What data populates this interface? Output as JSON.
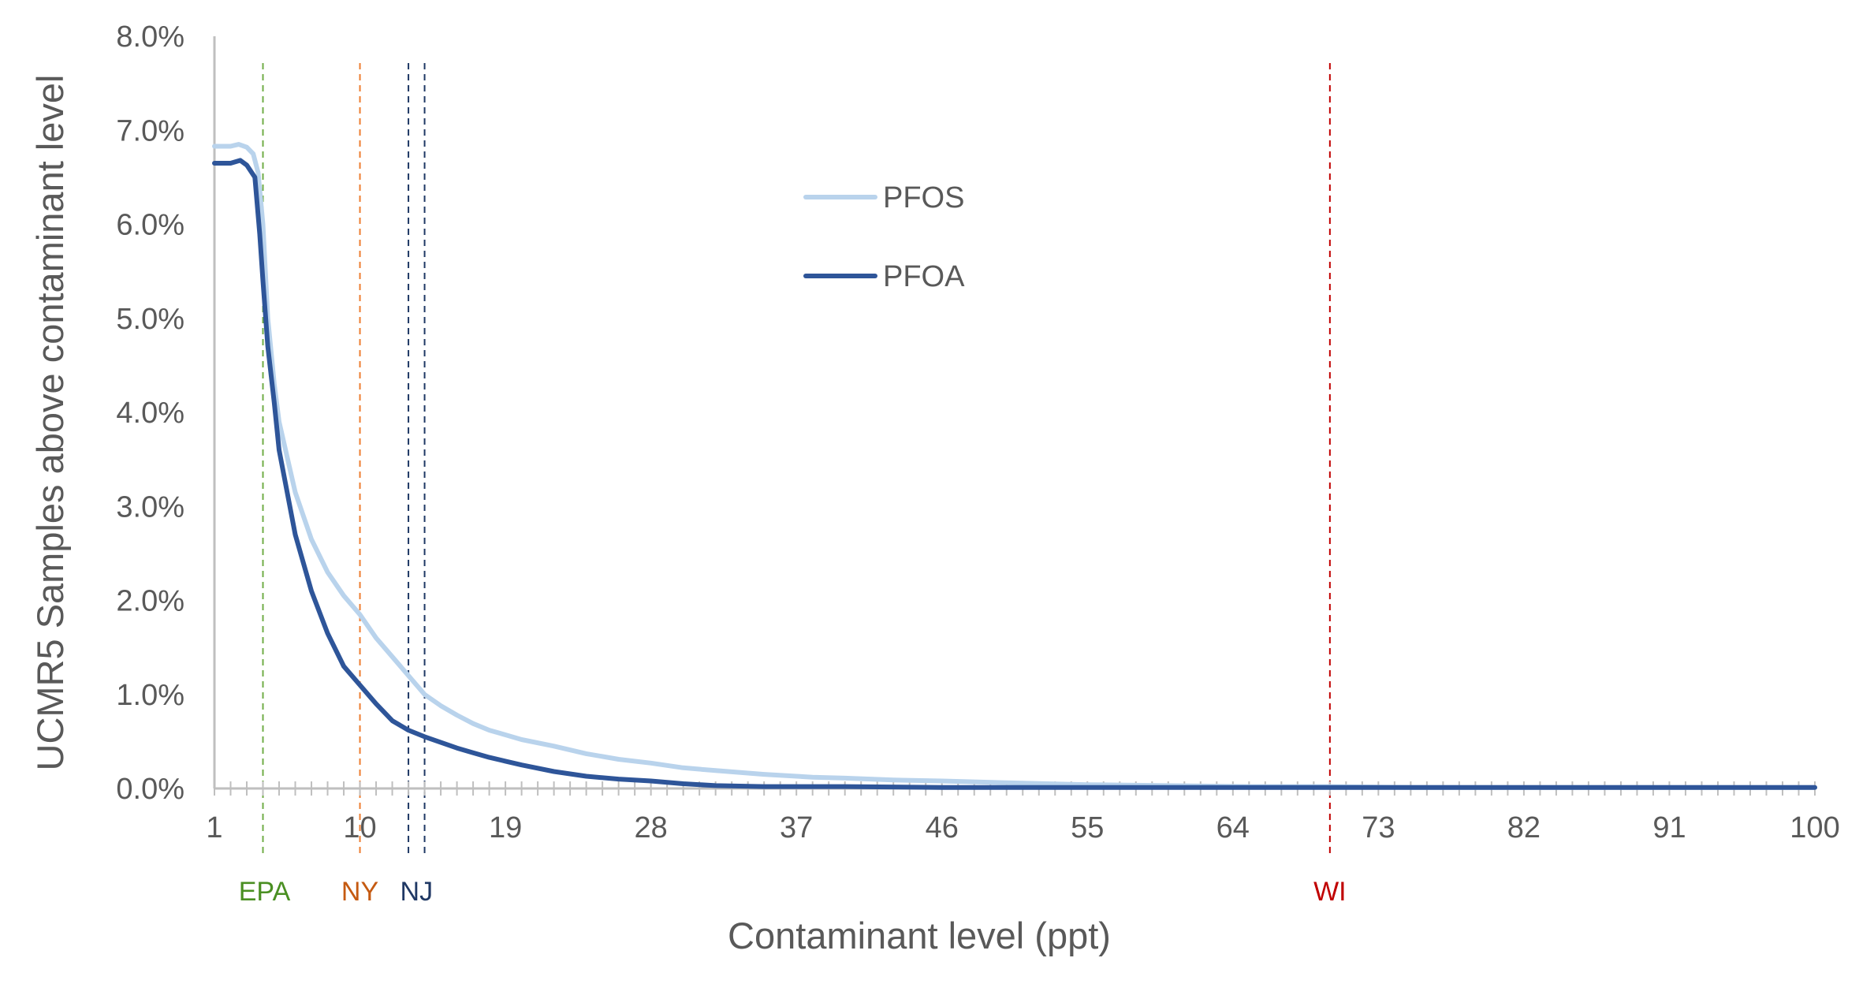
{
  "chart_data": {
    "type": "line",
    "title": "",
    "xlabel": "Contaminant level (ppt)",
    "ylabel": "UCMR5 Samples above contaminant level",
    "xlim": [
      1,
      100
    ],
    "ylim": [
      0,
      0.08
    ],
    "x_tick_labels": [
      "1",
      "10",
      "19",
      "28",
      "37",
      "46",
      "55",
      "64",
      "73",
      "82",
      "91",
      "100"
    ],
    "y_tick_labels": [
      "0.0%",
      "1.0%",
      "2.0%",
      "3.0%",
      "4.0%",
      "5.0%",
      "6.0%",
      "7.0%",
      "8.0%"
    ],
    "gridlines": false,
    "legend_position": "upper-center",
    "series": [
      {
        "name": "PFOS",
        "color": "#b9d3ec",
        "points": [
          [
            1,
            0.0683
          ],
          [
            2,
            0.0683
          ],
          [
            2.5,
            0.0685
          ],
          [
            3,
            0.0682
          ],
          [
            3.4,
            0.0675
          ],
          [
            3.7,
            0.0655
          ],
          [
            4,
            0.06
          ],
          [
            4.3,
            0.05
          ],
          [
            4.7,
            0.043
          ],
          [
            5,
            0.039
          ],
          [
            6,
            0.0315
          ],
          [
            7,
            0.0265
          ],
          [
            8,
            0.023
          ],
          [
            9,
            0.0205
          ],
          [
            10,
            0.0185
          ],
          [
            11,
            0.016
          ],
          [
            12,
            0.014
          ],
          [
            13,
            0.012
          ],
          [
            14,
            0.01
          ],
          [
            15,
            0.0088
          ],
          [
            16,
            0.0078
          ],
          [
            17,
            0.0069
          ],
          [
            18,
            0.0062
          ],
          [
            19,
            0.0057
          ],
          [
            20,
            0.0052
          ],
          [
            22,
            0.0045
          ],
          [
            24,
            0.0037
          ],
          [
            26,
            0.0031
          ],
          [
            28,
            0.0027
          ],
          [
            30,
            0.0022
          ],
          [
            32,
            0.0019
          ],
          [
            35,
            0.0015
          ],
          [
            38,
            0.0012
          ],
          [
            40,
            0.0011
          ],
          [
            43,
            0.0009
          ],
          [
            46,
            0.0008
          ],
          [
            50,
            0.0006
          ],
          [
            55,
            0.0004
          ],
          [
            60,
            0.0003
          ],
          [
            65,
            0.0002
          ],
          [
            70,
            0.0002
          ],
          [
            75,
            0.0001
          ],
          [
            80,
            0.0001
          ],
          [
            90,
            0.0001
          ],
          [
            100,
            0.0001
          ]
        ]
      },
      {
        "name": "PFOA",
        "color": "#2e5599",
        "points": [
          [
            1,
            0.0665
          ],
          [
            2,
            0.0665
          ],
          [
            2.6,
            0.0668
          ],
          [
            3,
            0.0663
          ],
          [
            3.5,
            0.065
          ],
          [
            3.8,
            0.059
          ],
          [
            4,
            0.054
          ],
          [
            4.3,
            0.047
          ],
          [
            4.7,
            0.041
          ],
          [
            5,
            0.036
          ],
          [
            6,
            0.027
          ],
          [
            7,
            0.021
          ],
          [
            8,
            0.0165
          ],
          [
            9,
            0.013
          ],
          [
            10,
            0.011
          ],
          [
            11,
            0.009
          ],
          [
            12,
            0.0072
          ],
          [
            13,
            0.0062
          ],
          [
            14,
            0.0055
          ],
          [
            15,
            0.0049
          ],
          [
            16,
            0.0043
          ],
          [
            17,
            0.0038
          ],
          [
            18,
            0.0033
          ],
          [
            19,
            0.0029
          ],
          [
            20,
            0.0025
          ],
          [
            22,
            0.0018
          ],
          [
            24,
            0.0013
          ],
          [
            26,
            0.001
          ],
          [
            28,
            0.0008
          ],
          [
            30,
            0.0005
          ],
          [
            32,
            0.0003
          ],
          [
            35,
            0.0002
          ],
          [
            40,
            0.0002
          ],
          [
            46,
            0.0001
          ],
          [
            50,
            0.0001
          ],
          [
            60,
            0.0001
          ],
          [
            80,
            0.0001
          ],
          [
            100,
            0.0001
          ]
        ]
      }
    ],
    "reference_lines": [
      {
        "label": "EPA",
        "x": 4,
        "color": "#70ad47",
        "text_color": "#4a8f22"
      },
      {
        "label": "NY",
        "x": 10,
        "color": "#ed7d31",
        "text_color": "#c55a11"
      },
      {
        "label": "NJ",
        "x": 13,
        "color": "#1f3864",
        "text_color": "#1f3864"
      },
      {
        "label": "",
        "x": 14,
        "color": "#1f3864",
        "text_color": "#1f3864"
      },
      {
        "label": "WI",
        "x": 70,
        "color": "#c00000",
        "text_color": "#c00000"
      }
    ]
  }
}
